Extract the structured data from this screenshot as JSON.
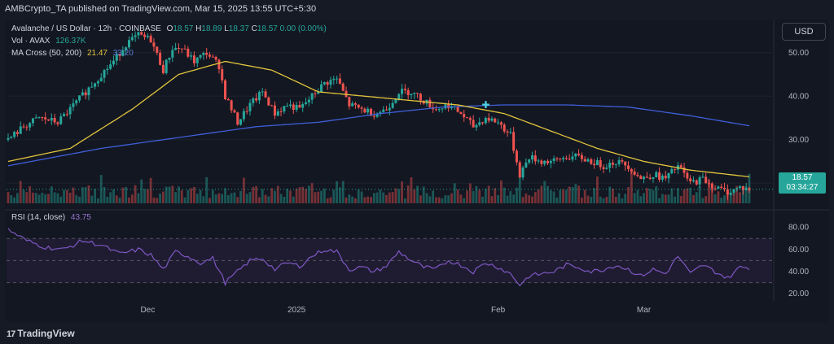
{
  "header": {
    "published_text": "AMBCrypto_TA published on TradingView.com, Mar 15, 2025 13:55 UTC+5:30"
  },
  "legend": {
    "symbol": "Avalanche / US Dollar · 12h · COINBASE",
    "open_label": "O",
    "open_value": "18.57",
    "high_label": "H",
    "high_value": "18.89",
    "low_label": "L",
    "low_value": "18.37",
    "close_label": "C",
    "close_value": "18.57",
    "change_value": "0.00 (0.00%)",
    "vol_label": "Vol · AVAX",
    "vol_value": "126.37K",
    "ma_label": "MA Cross (50, 200)",
    "ma_fast_value": "21.47",
    "ma_slow_value": "33.20",
    "rsi_label": "RSI (14, close)",
    "rsi_value": "43.75"
  },
  "currency_button": "USD",
  "price_tag": {
    "price": "18.57",
    "countdown": "03:34:27"
  },
  "footer": {
    "brand": "TradingView",
    "mark": "17"
  },
  "colors": {
    "up": "#26a69a",
    "down": "#ef5350",
    "ma_fast": "#e2c53c",
    "ma_slow": "#3f5fd8",
    "rsi": "#7e57c2",
    "rsi_band": "#2a2140"
  },
  "chart_data": [
    {
      "type": "candlestick",
      "title": "Avalanche / US Dollar",
      "ylim": [
        15,
        58
      ],
      "y_ticks": [
        "20.00",
        "30.00",
        "40.00",
        "50.00"
      ],
      "x_ticks": [
        "Dec",
        "2025",
        "Feb",
        "Mar"
      ],
      "anchors": [
        {
          "i": 0,
          "v": 30
        },
        {
          "i": 5,
          "v": 33
        },
        {
          "i": 10,
          "v": 35
        },
        {
          "i": 16,
          "v": 34
        },
        {
          "i": 20,
          "v": 37
        },
        {
          "i": 25,
          "v": 41
        },
        {
          "i": 30,
          "v": 45
        },
        {
          "i": 34,
          "v": 48
        },
        {
          "i": 38,
          "v": 52
        },
        {
          "i": 42,
          "v": 54
        },
        {
          "i": 46,
          "v": 53
        },
        {
          "i": 50,
          "v": 46
        },
        {
          "i": 53,
          "v": 51
        },
        {
          "i": 56,
          "v": 51
        },
        {
          "i": 60,
          "v": 48
        },
        {
          "i": 64,
          "v": 50
        },
        {
          "i": 68,
          "v": 47
        },
        {
          "i": 70,
          "v": 40
        },
        {
          "i": 74,
          "v": 34
        },
        {
          "i": 78,
          "v": 38
        },
        {
          "i": 82,
          "v": 41
        },
        {
          "i": 86,
          "v": 36
        },
        {
          "i": 90,
          "v": 38
        },
        {
          "i": 94,
          "v": 37
        },
        {
          "i": 98,
          "v": 40
        },
        {
          "i": 102,
          "v": 43
        },
        {
          "i": 106,
          "v": 44
        },
        {
          "i": 110,
          "v": 38
        },
        {
          "i": 114,
          "v": 37
        },
        {
          "i": 118,
          "v": 36
        },
        {
          "i": 122,
          "v": 37
        },
        {
          "i": 126,
          "v": 41
        },
        {
          "i": 130,
          "v": 41
        },
        {
          "i": 134,
          "v": 39
        },
        {
          "i": 138,
          "v": 37
        },
        {
          "i": 142,
          "v": 38
        },
        {
          "i": 146,
          "v": 36
        },
        {
          "i": 150,
          "v": 33
        },
        {
          "i": 154,
          "v": 35
        },
        {
          "i": 158,
          "v": 34
        },
        {
          "i": 162,
          "v": 31
        },
        {
          "i": 165,
          "v": 22
        },
        {
          "i": 168,
          "v": 26
        },
        {
          "i": 172,
          "v": 25
        },
        {
          "i": 176,
          "v": 25
        },
        {
          "i": 180,
          "v": 26
        },
        {
          "i": 184,
          "v": 26
        },
        {
          "i": 188,
          "v": 25
        },
        {
          "i": 192,
          "v": 24
        },
        {
          "i": 196,
          "v": 25
        },
        {
          "i": 200,
          "v": 24
        },
        {
          "i": 204,
          "v": 21
        },
        {
          "i": 208,
          "v": 22
        },
        {
          "i": 212,
          "v": 21
        },
        {
          "i": 216,
          "v": 24
        },
        {
          "i": 220,
          "v": 20
        },
        {
          "i": 224,
          "v": 21
        },
        {
          "i": 228,
          "v": 19
        },
        {
          "i": 232,
          "v": 18
        },
        {
          "i": 236,
          "v": 19
        },
        {
          "i": 239,
          "v": 18.57
        }
      ],
      "ma_fast": [
        {
          "i": 0,
          "v": 25
        },
        {
          "i": 20,
          "v": 28
        },
        {
          "i": 40,
          "v": 37
        },
        {
          "i": 55,
          "v": 45
        },
        {
          "i": 70,
          "v": 48
        },
        {
          "i": 85,
          "v": 46
        },
        {
          "i": 100,
          "v": 41
        },
        {
          "i": 115,
          "v": 40
        },
        {
          "i": 130,
          "v": 39
        },
        {
          "i": 145,
          "v": 38
        },
        {
          "i": 160,
          "v": 36
        },
        {
          "i": 175,
          "v": 32
        },
        {
          "i": 190,
          "v": 28
        },
        {
          "i": 205,
          "v": 25
        },
        {
          "i": 220,
          "v": 23
        },
        {
          "i": 239,
          "v": 21.47
        }
      ],
      "ma_slow": [
        {
          "i": 0,
          "v": 24
        },
        {
          "i": 30,
          "v": 28
        },
        {
          "i": 60,
          "v": 31
        },
        {
          "i": 80,
          "v": 33
        },
        {
          "i": 100,
          "v": 34
        },
        {
          "i": 120,
          "v": 36
        },
        {
          "i": 140,
          "v": 37.5
        },
        {
          "i": 160,
          "v": 38
        },
        {
          "i": 180,
          "v": 38
        },
        {
          "i": 200,
          "v": 37.5
        },
        {
          "i": 220,
          "v": 35.5
        },
        {
          "i": 239,
          "v": 33.2
        }
      ]
    },
    {
      "type": "bar",
      "title": "Vol · AVAX",
      "last_value": "126.37K"
    },
    {
      "type": "line",
      "title": "RSI (14, close)",
      "ylim": [
        15,
        90
      ],
      "y_ticks": [
        "20.00",
        "40.00",
        "60.00",
        "80.00"
      ],
      "band": [
        30,
        70
      ],
      "mid": 50,
      "anchors": [
        {
          "i": 0,
          "v": 78
        },
        {
          "i": 6,
          "v": 68
        },
        {
          "i": 12,
          "v": 62
        },
        {
          "i": 18,
          "v": 60
        },
        {
          "i": 24,
          "v": 68
        },
        {
          "i": 30,
          "v": 64
        },
        {
          "i": 36,
          "v": 56
        },
        {
          "i": 42,
          "v": 60
        },
        {
          "i": 46,
          "v": 55
        },
        {
          "i": 50,
          "v": 42
        },
        {
          "i": 54,
          "v": 58
        },
        {
          "i": 58,
          "v": 54
        },
        {
          "i": 62,
          "v": 48
        },
        {
          "i": 66,
          "v": 52
        },
        {
          "i": 70,
          "v": 30
        },
        {
          "i": 74,
          "v": 40
        },
        {
          "i": 78,
          "v": 50
        },
        {
          "i": 82,
          "v": 52
        },
        {
          "i": 86,
          "v": 42
        },
        {
          "i": 90,
          "v": 48
        },
        {
          "i": 94,
          "v": 45
        },
        {
          "i": 98,
          "v": 54
        },
        {
          "i": 102,
          "v": 60
        },
        {
          "i": 106,
          "v": 58
        },
        {
          "i": 110,
          "v": 42
        },
        {
          "i": 114,
          "v": 44
        },
        {
          "i": 118,
          "v": 40
        },
        {
          "i": 122,
          "v": 45
        },
        {
          "i": 126,
          "v": 58
        },
        {
          "i": 130,
          "v": 50
        },
        {
          "i": 134,
          "v": 44
        },
        {
          "i": 138,
          "v": 42
        },
        {
          "i": 142,
          "v": 50
        },
        {
          "i": 146,
          "v": 46
        },
        {
          "i": 150,
          "v": 40
        },
        {
          "i": 154,
          "v": 48
        },
        {
          "i": 158,
          "v": 44
        },
        {
          "i": 162,
          "v": 38
        },
        {
          "i": 165,
          "v": 28
        },
        {
          "i": 168,
          "v": 36
        },
        {
          "i": 172,
          "v": 38
        },
        {
          "i": 176,
          "v": 40
        },
        {
          "i": 180,
          "v": 46
        },
        {
          "i": 184,
          "v": 44
        },
        {
          "i": 188,
          "v": 40
        },
        {
          "i": 192,
          "v": 42
        },
        {
          "i": 196,
          "v": 46
        },
        {
          "i": 200,
          "v": 42
        },
        {
          "i": 204,
          "v": 36
        },
        {
          "i": 208,
          "v": 42
        },
        {
          "i": 212,
          "v": 38
        },
        {
          "i": 216,
          "v": 54
        },
        {
          "i": 220,
          "v": 38
        },
        {
          "i": 224,
          "v": 46
        },
        {
          "i": 228,
          "v": 40
        },
        {
          "i": 232,
          "v": 34
        },
        {
          "i": 236,
          "v": 44
        },
        {
          "i": 239,
          "v": 43.75
        }
      ]
    }
  ]
}
